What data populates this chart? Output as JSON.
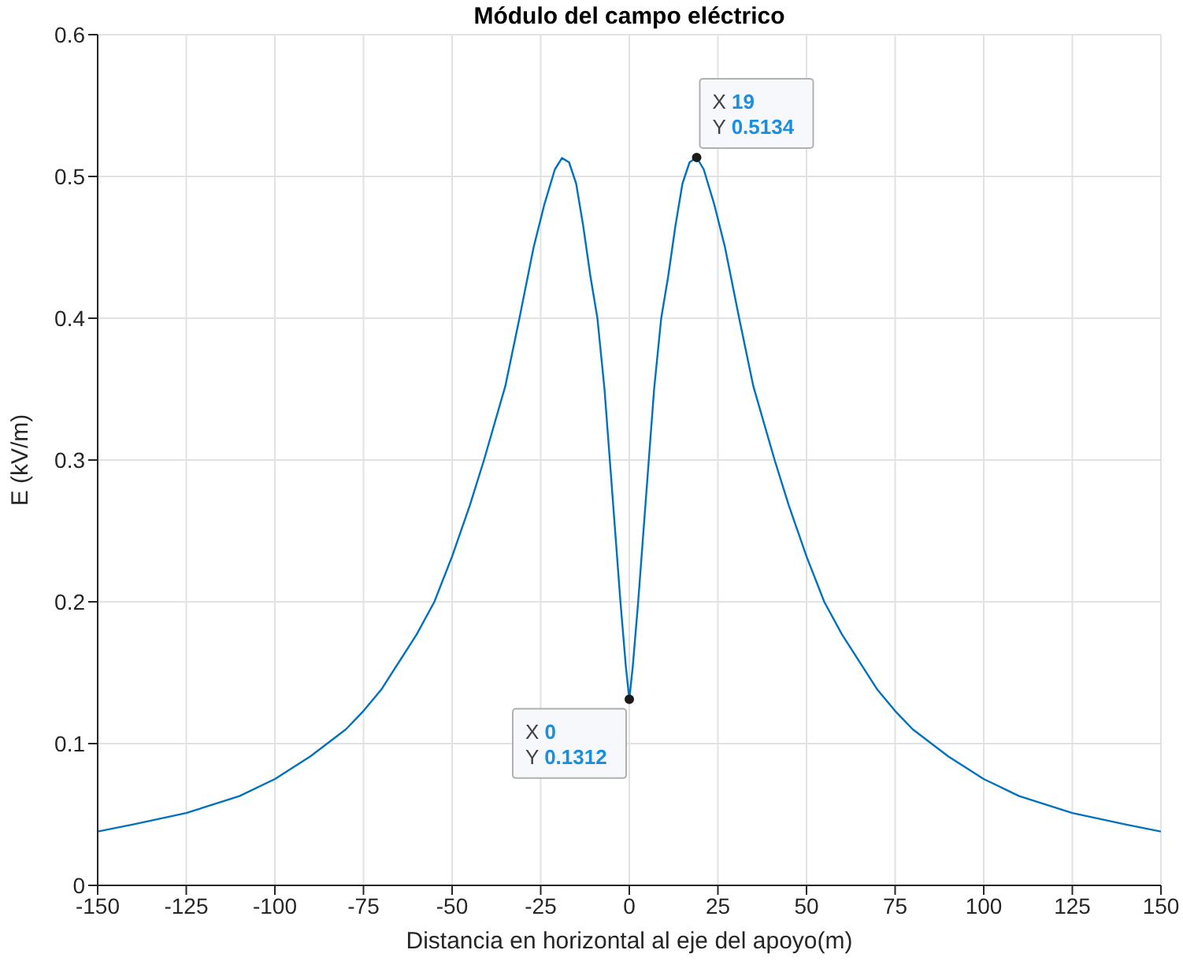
{
  "chart_data": {
    "type": "line",
    "title": "Módulo del campo eléctrico",
    "xlabel": "Distancia en horizontal al eje del apoyo(m)",
    "ylabel": "E (kV/m)",
    "x": [
      -150,
      -140,
      -125,
      -110,
      -100,
      -90,
      -80,
      -75,
      -70,
      -60,
      -55,
      -50,
      -45,
      -41,
      -35,
      -31,
      -27,
      -24,
      -21,
      -19,
      -17,
      -15,
      -13,
      -11,
      -9,
      -7,
      -5.5,
      -4,
      -2.5,
      -1,
      0,
      1,
      2.5,
      4,
      5.5,
      7,
      9,
      11,
      13,
      15,
      17,
      19,
      21,
      24,
      27,
      31,
      35,
      41,
      45,
      50,
      55,
      60,
      70,
      75,
      80,
      90,
      100,
      110,
      125,
      140,
      150
    ],
    "series": [
      {
        "color": "#0072bd",
        "values": [
          0.038,
          0.043,
          0.051,
          0.063,
          0.075,
          0.091,
          0.11,
          0.123,
          0.138,
          0.177,
          0.2,
          0.232,
          0.268,
          0.3,
          0.352,
          0.4,
          0.45,
          0.48,
          0.505,
          0.513,
          0.51,
          0.495,
          0.465,
          0.43,
          0.4,
          0.35,
          0.3,
          0.25,
          0.2,
          0.155,
          0.1312,
          0.155,
          0.2,
          0.25,
          0.3,
          0.35,
          0.4,
          0.43,
          0.465,
          0.495,
          0.51,
          0.5134,
          0.505,
          0.48,
          0.45,
          0.4,
          0.352,
          0.3,
          0.268,
          0.232,
          0.2,
          0.177,
          0.138,
          0.123,
          0.11,
          0.091,
          0.075,
          0.063,
          0.051,
          0.043,
          0.038
        ]
      }
    ],
    "xlim": [
      -150,
      150
    ],
    "xticks": [
      -150,
      -125,
      -100,
      -75,
      -50,
      -25,
      0,
      25,
      50,
      75,
      100,
      125,
      150
    ],
    "ylim": [
      0,
      0.6
    ],
    "yticks": [
      0,
      0.1,
      0.2,
      0.3,
      0.4,
      0.5,
      0.6
    ],
    "grid": true,
    "marker": "none",
    "line_style": "solid",
    "annotations": [
      {
        "text": "X 19\nY 0.5134",
        "x": 19,
        "y": 0.5134
      },
      {
        "text": "X 0\nY 0.1312",
        "x": 0,
        "y": 0.1312
      }
    ]
  }
}
